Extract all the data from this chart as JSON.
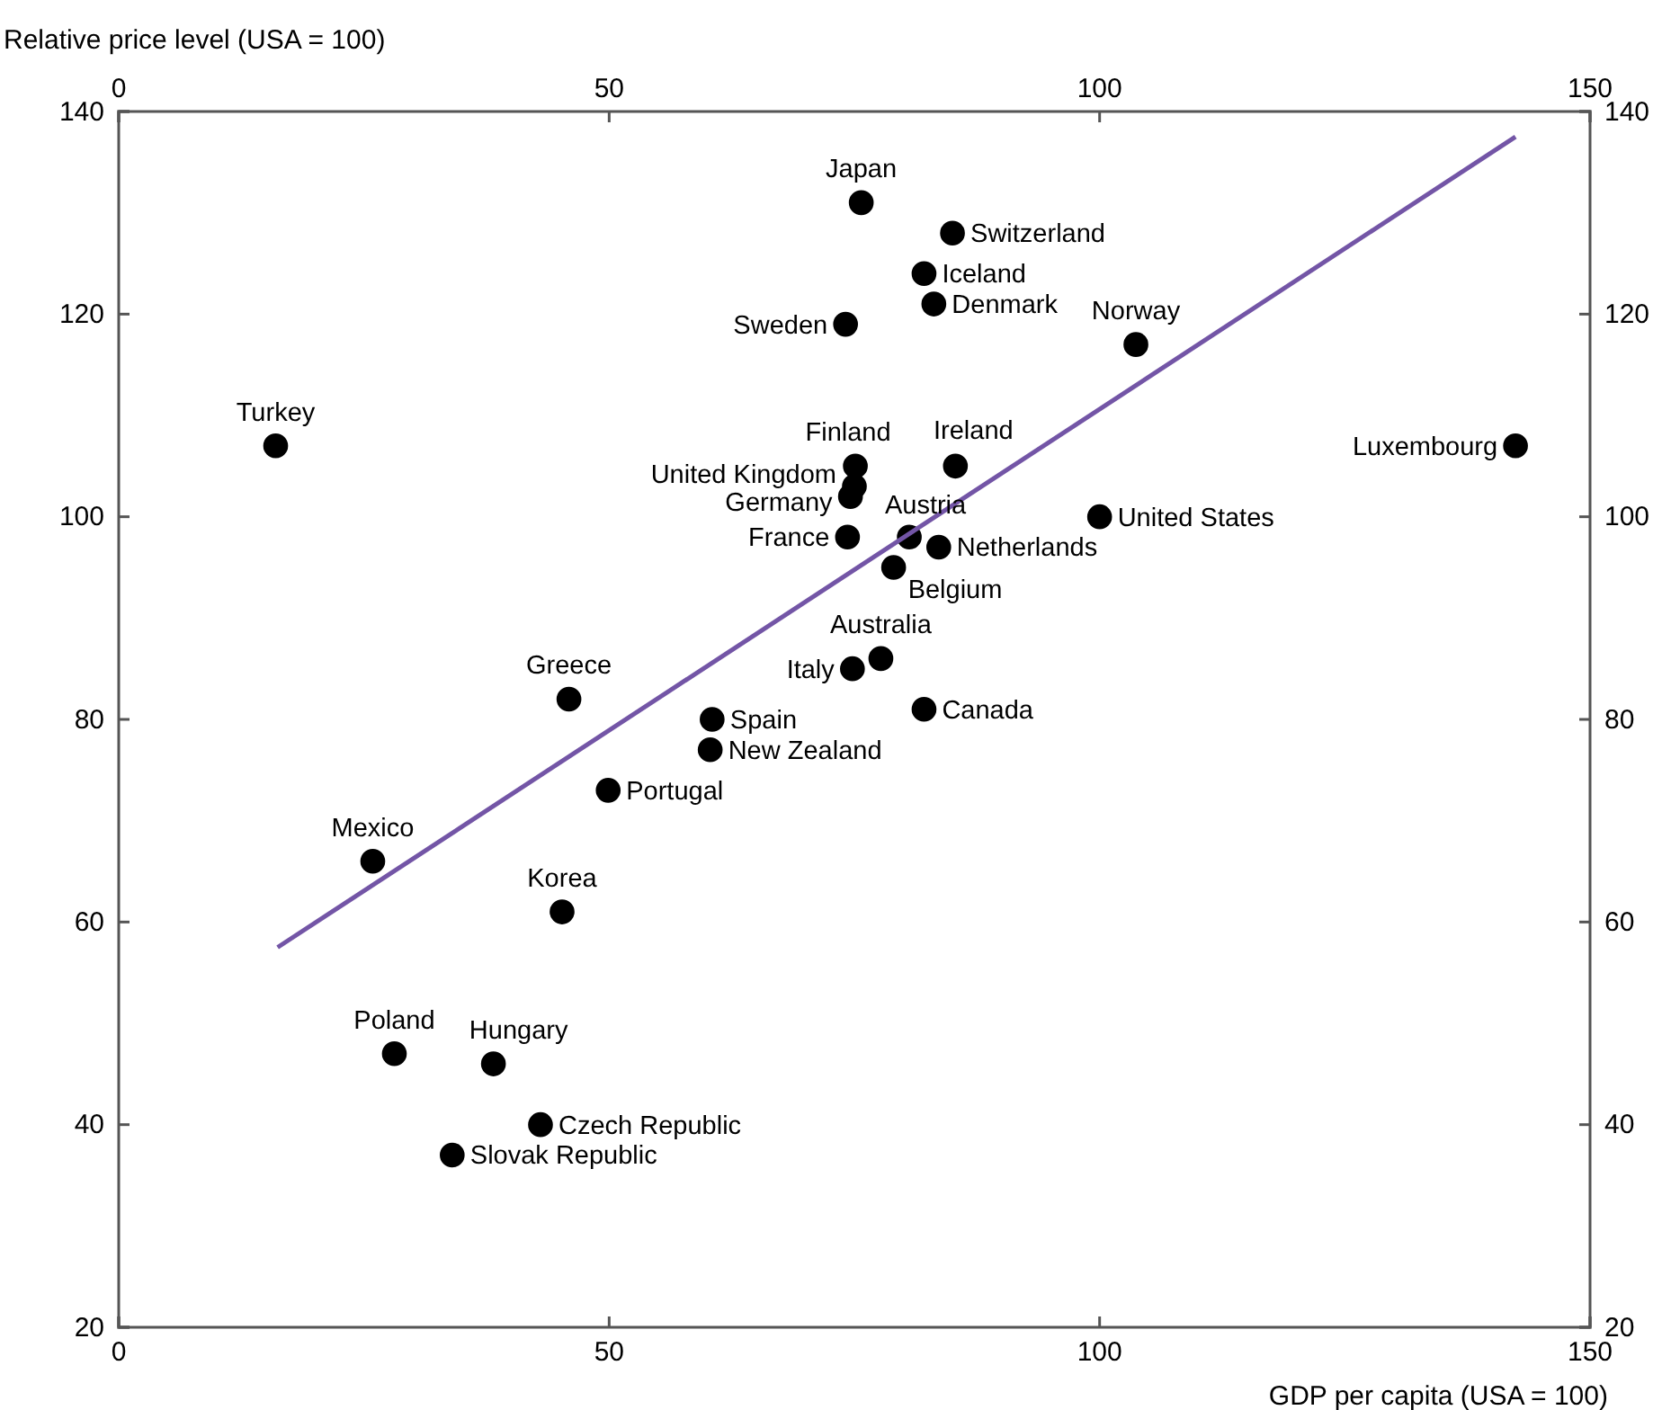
{
  "chart_data": {
    "type": "scatter",
    "xlabel": "GDP per capita (USA = 100)",
    "ylabel": "Relative price level (USA = 100)",
    "xlim": [
      0,
      150
    ],
    "xticks": [
      0,
      50,
      100,
      150
    ],
    "x2lim": [
      0,
      150
    ],
    "x2ticks": [
      0,
      50,
      100,
      150
    ],
    "ylim": [
      20,
      140
    ],
    "yticks": [
      20,
      40,
      60,
      80,
      100,
      120,
      140
    ],
    "y2lim": [
      20,
      140
    ],
    "y2ticks": [
      20,
      40,
      60,
      80,
      100,
      120,
      140
    ],
    "grid": false,
    "marker": "circle",
    "series": [
      {
        "color": "#000000",
        "x": [
          16,
          25.9,
          28.1,
          38.2,
          34,
          43,
          45.2,
          45.9,
          49.9,
          60.3,
          60.5,
          74.8,
          77.7,
          82.1,
          79,
          74.3,
          74.6,
          75,
          75.1,
          80.6,
          83.6,
          85.3,
          74.1,
          75.7,
          85,
          82.1,
          83.1,
          103.7,
          100,
          142.4
        ],
        "values": [
          107,
          66,
          47,
          46,
          37,
          40,
          61,
          82,
          73,
          77,
          80,
          85,
          86,
          81,
          95,
          98,
          102,
          103,
          105,
          98,
          97,
          105,
          119,
          131,
          128,
          124,
          121,
          117,
          100,
          107
        ]
      },
      {
        "type": "line",
        "color": "#7355a6",
        "line_style": "solid",
        "marker": "none",
        "x": [
          16.2,
          142.4
        ],
        "values": [
          57.5,
          137.5
        ]
      }
    ],
    "annotations": [
      {
        "text": "Turkey",
        "x": 16,
        "y": 107
      },
      {
        "text": "Mexico",
        "x": 25.9,
        "y": 66
      },
      {
        "text": "Poland",
        "x": 28.1,
        "y": 47
      },
      {
        "text": "Hungary",
        "x": 38.2,
        "y": 46
      },
      {
        "text": "Slovak Republic",
        "x": 34,
        "y": 37
      },
      {
        "text": "Czech Republic",
        "x": 43,
        "y": 40
      },
      {
        "text": "Korea",
        "x": 45.2,
        "y": 61
      },
      {
        "text": "Greece",
        "x": 45.9,
        "y": 82
      },
      {
        "text": "Portugal",
        "x": 49.9,
        "y": 73
      },
      {
        "text": "New Zealand",
        "x": 60.3,
        "y": 77
      },
      {
        "text": "Spain",
        "x": 60.5,
        "y": 80
      },
      {
        "text": "Italy",
        "x": 74.8,
        "y": 85
      },
      {
        "text": "Australia",
        "x": 77.7,
        "y": 86
      },
      {
        "text": "Canada",
        "x": 82.1,
        "y": 81
      },
      {
        "text": "Belgium",
        "x": 79,
        "y": 95
      },
      {
        "text": "France",
        "x": 74.3,
        "y": 98
      },
      {
        "text": "Germany",
        "x": 74.6,
        "y": 102
      },
      {
        "text": "United Kingdom",
        "x": 75,
        "y": 103
      },
      {
        "text": "Finland",
        "x": 75.1,
        "y": 105
      },
      {
        "text": "Austria",
        "x": 80.6,
        "y": 98
      },
      {
        "text": "Netherlands",
        "x": 83.6,
        "y": 97
      },
      {
        "text": "Ireland",
        "x": 85.3,
        "y": 105
      },
      {
        "text": "Sweden",
        "x": 74.1,
        "y": 119
      },
      {
        "text": "Japan",
        "x": 75.7,
        "y": 131
      },
      {
        "text": "Switzerland",
        "x": 85,
        "y": 128
      },
      {
        "text": "Iceland",
        "x": 82.1,
        "y": 124
      },
      {
        "text": "Denmark",
        "x": 83.1,
        "y": 121
      },
      {
        "text": "Norway",
        "x": 103.7,
        "y": 117
      },
      {
        "text": "United States",
        "x": 100,
        "y": 100
      },
      {
        "text": "Luxembourg",
        "x": 142.4,
        "y": 107
      }
    ]
  }
}
